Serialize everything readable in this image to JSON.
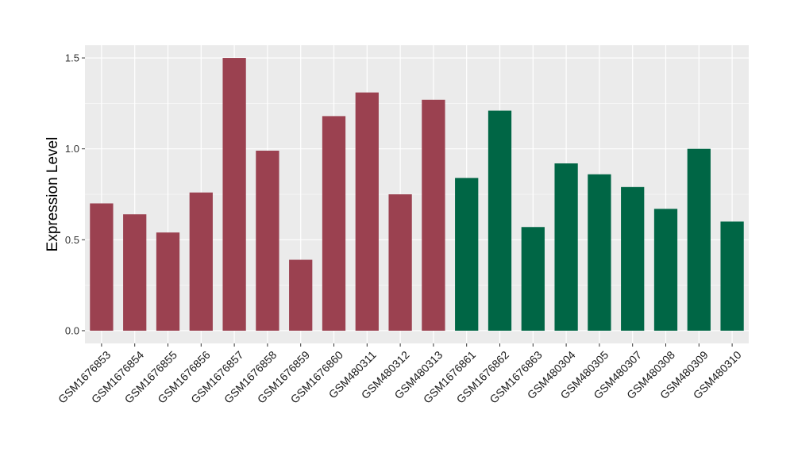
{
  "chart_data": {
    "type": "bar",
    "title": "",
    "xlabel": "",
    "ylabel": "Expression Level",
    "ylim": [
      -0.07,
      1.57
    ],
    "yticks": [
      0.0,
      0.5,
      1.0,
      1.5
    ],
    "ytick_labels": [
      "0.0",
      "0.5",
      "1.0",
      "1.5"
    ],
    "grid": true,
    "legend": "none",
    "categories": [
      "GSM1676853",
      "GSM1676854",
      "GSM1676855",
      "GSM1676856",
      "GSM1676857",
      "GSM1676858",
      "GSM1676859",
      "GSM1676860",
      "GSM480311",
      "GSM480312",
      "GSM480313",
      "GSM1676861",
      "GSM1676862",
      "GSM1676863",
      "GSM480304",
      "GSM480305",
      "GSM480307",
      "GSM480308",
      "GSM480309",
      "GSM480310"
    ],
    "values": [
      0.7,
      0.64,
      0.54,
      0.76,
      1.5,
      0.99,
      0.39,
      1.18,
      1.31,
      0.75,
      1.27,
      0.84,
      1.21,
      0.57,
      0.92,
      0.86,
      0.79,
      0.67,
      1.0,
      0.6
    ],
    "bar_colors": [
      "#9b4150",
      "#9b4150",
      "#9b4150",
      "#9b4150",
      "#9b4150",
      "#9b4150",
      "#9b4150",
      "#9b4150",
      "#9b4150",
      "#9b4150",
      "#9b4150",
      "#006645",
      "#006645",
      "#006645",
      "#006645",
      "#006645",
      "#006645",
      "#006645",
      "#006645",
      "#006645"
    ],
    "panel_background": "#ebebeb",
    "grid_color": "#ffffff"
  }
}
